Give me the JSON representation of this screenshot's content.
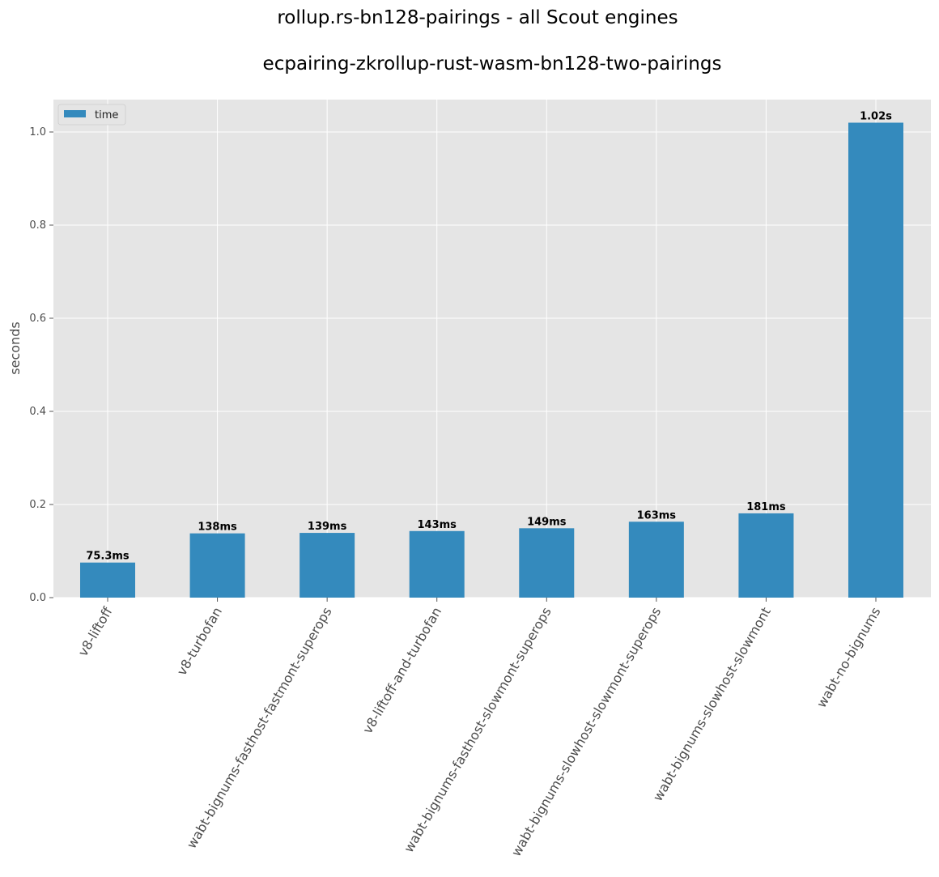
{
  "chart_data": {
    "type": "bar",
    "suptitle": "rollup.rs-bn128-pairings - all Scout engines",
    "title": "ecpairing-zkrollup-rust-wasm-bn128-two-pairings",
    "xlabel": "",
    "ylabel": "seconds",
    "ylim": [
      0,
      1.07
    ],
    "yticks": [
      0.0,
      0.2,
      0.4,
      0.6,
      0.8,
      1.0
    ],
    "ytick_labels": [
      "0.0",
      "0.2",
      "0.4",
      "0.6",
      "0.8",
      "1.0"
    ],
    "grid": true,
    "legend_position": "top-left",
    "categories": [
      "v8-liftoff",
      "v8-turbofan",
      "wabt-bignums-fasthost-fastmont-superops",
      "v8-liftoff-and-turbofan",
      "wabt-bignums-fasthost-slowmont-superops",
      "wabt-bignums-slowhost-slowmont-superops",
      "wabt-bignums-slowhost-slowmont",
      "wabt-no-bignums"
    ],
    "series": [
      {
        "name": "time",
        "color": "#348abd",
        "values": [
          0.0753,
          0.138,
          0.139,
          0.143,
          0.149,
          0.163,
          0.181,
          1.02
        ],
        "data_labels": [
          "75.3ms",
          "138ms",
          "139ms",
          "143ms",
          "149ms",
          "163ms",
          "181ms",
          "1.02s"
        ]
      }
    ],
    "colors": {
      "plot_background": "#e5e5e5",
      "grid": "#ffffff",
      "bar": "#348abd"
    }
  }
}
